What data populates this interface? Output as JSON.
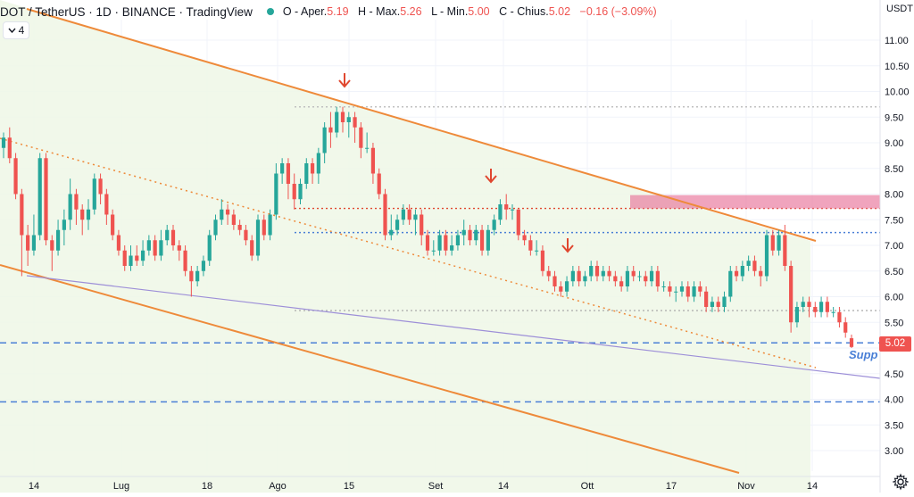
{
  "header": {
    "title": "DOT / TetherUS · 1D · BINANCE · TradingView",
    "status_color": "#26a69a",
    "ohlc": [
      {
        "label": "O - Aper.",
        "value": "5.19"
      },
      {
        "label": "H - Max.",
        "value": "5.26"
      },
      {
        "label": "L - Min.",
        "value": "5.00"
      },
      {
        "label": "C - Chius.",
        "value": "5.02"
      }
    ],
    "change": "−0.16 (−3.09%)"
  },
  "indicator_toggle": {
    "count": "4",
    "icon": "chevron-down-icon"
  },
  "price_axis": {
    "currency": "USDT"
  },
  "last_price": "5.02",
  "support_label": "Support",
  "colors": {
    "up": "#26a69a",
    "down": "#ef5350",
    "trendline": "#ee8a3a",
    "level_blue": "#4a7fd6",
    "level_red": "#e0472f",
    "zone_pink": "#e8739a",
    "channel_fill": "#eef7e6",
    "purple_line": "#9d8fd8"
  },
  "chart_data": {
    "type": "candlestick",
    "ylim": [
      2.6,
      11.4
    ],
    "y_ticks": [
      "3.00",
      "3.50",
      "4.00",
      "4.50",
      "5.00",
      "5.50",
      "6.00",
      "6.50",
      "7.00",
      "7.50",
      "8.00",
      "8.50",
      "9.00",
      "9.50",
      "10.00",
      "10.50",
      "11.00"
    ],
    "x_ticks": [
      "14",
      "Lug",
      "18",
      "Ago",
      "15",
      "Set",
      "14",
      "Ott",
      "17",
      "Nov",
      "14"
    ],
    "candles": [
      [
        8.9,
        9.1,
        8.7,
        9.2
      ],
      [
        9.1,
        8.7,
        8.6,
        9.3
      ],
      [
        8.7,
        8.0,
        7.9,
        8.8
      ],
      [
        8.0,
        7.2,
        6.4,
        8.1
      ],
      [
        7.2,
        6.9,
        6.6,
        7.4
      ],
      [
        6.9,
        7.2,
        6.8,
        7.6
      ],
      [
        7.2,
        8.7,
        7.1,
        8.8
      ],
      [
        8.7,
        7.1,
        7.0,
        8.8
      ],
      [
        7.1,
        6.9,
        6.5,
        7.2
      ],
      [
        6.9,
        7.3,
        6.8,
        7.5
      ],
      [
        7.3,
        7.5,
        7.0,
        7.7
      ],
      [
        7.5,
        8.0,
        7.3,
        8.3
      ],
      [
        8.0,
        7.7,
        7.4,
        8.1
      ],
      [
        7.7,
        7.5,
        7.2,
        7.8
      ],
      [
        7.5,
        7.7,
        7.3,
        7.9
      ],
      [
        7.7,
        8.3,
        7.6,
        8.4
      ],
      [
        8.3,
        8.0,
        7.8,
        8.4
      ],
      [
        8.0,
        7.6,
        7.4,
        8.1
      ],
      [
        7.6,
        7.2,
        7.1,
        7.7
      ],
      [
        7.2,
        6.9,
        6.8,
        7.3
      ],
      [
        6.9,
        6.6,
        6.5,
        7.0
      ],
      [
        6.6,
        6.8,
        6.5,
        7.0
      ],
      [
        6.8,
        6.7,
        6.6,
        7.0
      ],
      [
        6.7,
        6.9,
        6.6,
        7.1
      ],
      [
        6.9,
        7.1,
        6.8,
        7.2
      ],
      [
        7.1,
        6.8,
        6.7,
        7.2
      ],
      [
        6.8,
        7.1,
        6.7,
        7.3
      ],
      [
        7.1,
        7.3,
        7.0,
        7.4
      ],
      [
        7.3,
        7.0,
        6.9,
        7.4
      ],
      [
        7.0,
        6.9,
        6.7,
        7.1
      ],
      [
        6.9,
        6.5,
        6.4,
        7.0
      ],
      [
        6.5,
        6.3,
        6.0,
        6.6
      ],
      [
        6.3,
        6.5,
        6.2,
        6.6
      ],
      [
        6.5,
        6.7,
        6.4,
        6.8
      ],
      [
        6.7,
        7.2,
        6.6,
        7.3
      ],
      [
        7.2,
        7.5,
        7.1,
        7.6
      ],
      [
        7.5,
        7.7,
        7.4,
        7.9
      ],
      [
        7.7,
        7.6,
        7.4,
        7.8
      ],
      [
        7.6,
        7.4,
        7.3,
        7.7
      ],
      [
        7.4,
        7.3,
        7.2,
        7.5
      ],
      [
        7.3,
        7.1,
        7.0,
        7.4
      ],
      [
        7.1,
        6.8,
        6.7,
        7.2
      ],
      [
        6.8,
        7.5,
        6.7,
        7.6
      ],
      [
        7.5,
        7.2,
        7.1,
        7.6
      ],
      [
        7.2,
        7.6,
        7.1,
        7.7
      ],
      [
        7.6,
        8.4,
        7.5,
        8.6
      ],
      [
        8.4,
        8.6,
        8.2,
        8.7
      ],
      [
        8.6,
        8.2,
        7.9,
        8.7
      ],
      [
        8.2,
        7.9,
        7.7,
        8.4
      ],
      [
        7.9,
        8.2,
        7.8,
        8.3
      ],
      [
        8.2,
        8.6,
        8.1,
        8.7
      ],
      [
        8.6,
        8.4,
        8.2,
        8.7
      ],
      [
        8.4,
        8.8,
        8.2,
        8.9
      ],
      [
        8.8,
        9.3,
        8.6,
        9.4
      ],
      [
        9.3,
        9.2,
        8.9,
        9.6
      ],
      [
        9.2,
        9.6,
        9.1,
        9.7
      ],
      [
        9.6,
        9.4,
        9.2,
        9.7
      ],
      [
        9.4,
        9.5,
        9.1,
        9.6
      ],
      [
        9.5,
        9.3,
        9.0,
        9.6
      ],
      [
        9.3,
        8.9,
        8.7,
        9.4
      ],
      [
        8.9,
        8.9,
        8.8,
        9.2
      ],
      [
        8.9,
        8.4,
        8.2,
        9.0
      ],
      [
        8.4,
        8.0,
        7.9,
        8.5
      ],
      [
        8.0,
        7.2,
        7.1,
        8.1
      ],
      [
        7.2,
        7.3,
        7.1,
        7.6
      ],
      [
        7.3,
        7.5,
        7.2,
        7.6
      ],
      [
        7.5,
        7.7,
        7.4,
        7.8
      ],
      [
        7.7,
        7.5,
        7.4,
        7.8
      ],
      [
        7.5,
        7.6,
        7.2,
        7.7
      ],
      [
        7.6,
        7.2,
        7.0,
        7.7
      ],
      [
        7.2,
        6.9,
        6.8,
        7.3
      ],
      [
        6.9,
        6.9,
        6.8,
        7.1
      ],
      [
        6.9,
        7.2,
        6.8,
        7.3
      ],
      [
        7.2,
        6.9,
        6.8,
        7.3
      ],
      [
        6.9,
        7.0,
        6.8,
        7.2
      ],
      [
        7.0,
        7.2,
        6.9,
        7.3
      ],
      [
        7.2,
        7.3,
        7.0,
        7.5
      ],
      [
        7.3,
        7.1,
        7.0,
        7.4
      ],
      [
        7.1,
        7.3,
        7.0,
        7.4
      ],
      [
        7.3,
        6.9,
        6.8,
        7.4
      ],
      [
        6.9,
        7.3,
        6.8,
        7.4
      ],
      [
        7.3,
        7.5,
        7.2,
        7.6
      ],
      [
        7.5,
        7.8,
        7.4,
        7.9
      ],
      [
        7.8,
        7.7,
        7.5,
        8.0
      ],
      [
        7.7,
        7.7,
        7.5,
        7.8
      ],
      [
        7.7,
        7.2,
        7.1,
        7.7
      ],
      [
        7.2,
        7.1,
        7.0,
        7.3
      ],
      [
        7.1,
        6.9,
        6.8,
        7.2
      ],
      [
        6.9,
        6.9,
        6.8,
        7.1
      ],
      [
        6.9,
        6.5,
        6.4,
        7.0
      ],
      [
        6.5,
        6.4,
        6.3,
        6.6
      ],
      [
        6.4,
        6.2,
        6.1,
        6.5
      ],
      [
        6.2,
        6.1,
        6.0,
        6.3
      ],
      [
        6.1,
        6.3,
        6.0,
        6.4
      ],
      [
        6.3,
        6.5,
        6.2,
        6.6
      ],
      [
        6.5,
        6.3,
        6.2,
        6.6
      ],
      [
        6.3,
        6.4,
        6.2,
        6.5
      ],
      [
        6.4,
        6.6,
        6.3,
        6.7
      ],
      [
        6.6,
        6.4,
        6.3,
        6.7
      ],
      [
        6.4,
        6.5,
        6.3,
        6.6
      ],
      [
        6.5,
        6.4,
        6.3,
        6.6
      ],
      [
        6.4,
        6.3,
        6.2,
        6.5
      ],
      [
        6.3,
        6.2,
        6.1,
        6.4
      ],
      [
        6.2,
        6.5,
        6.1,
        6.6
      ],
      [
        6.5,
        6.4,
        6.3,
        6.6
      ],
      [
        6.4,
        6.4,
        6.3,
        6.5
      ],
      [
        6.4,
        6.3,
        6.2,
        6.5
      ],
      [
        6.3,
        6.5,
        6.2,
        6.6
      ],
      [
        6.5,
        6.2,
        6.1,
        6.6
      ],
      [
        6.2,
        6.2,
        6.1,
        6.3
      ],
      [
        6.2,
        6.1,
        6.0,
        6.3
      ],
      [
        6.1,
        6.1,
        5.9,
        6.2
      ],
      [
        6.1,
        6.2,
        6.0,
        6.3
      ],
      [
        6.2,
        6.0,
        5.9,
        6.3
      ],
      [
        6.0,
        6.2,
        5.9,
        6.3
      ],
      [
        6.2,
        6.1,
        6.0,
        6.3
      ],
      [
        6.1,
        5.8,
        5.7,
        6.2
      ],
      [
        5.8,
        5.9,
        5.7,
        6.0
      ],
      [
        5.9,
        5.8,
        5.7,
        6.0
      ],
      [
        5.8,
        6.0,
        5.7,
        6.1
      ],
      [
        6.0,
        6.5,
        5.9,
        6.6
      ],
      [
        6.5,
        6.4,
        6.3,
        6.6
      ],
      [
        6.4,
        6.6,
        6.3,
        6.7
      ],
      [
        6.6,
        6.7,
        6.5,
        6.8
      ],
      [
        6.7,
        6.5,
        6.4,
        6.8
      ],
      [
        6.5,
        6.4,
        6.2,
        6.6
      ],
      [
        6.4,
        7.2,
        6.3,
        7.3
      ],
      [
        7.2,
        6.9,
        6.8,
        7.3
      ],
      [
        6.9,
        7.2,
        6.8,
        7.3
      ],
      [
        7.2,
        6.6,
        6.5,
        7.4
      ],
      [
        6.6,
        5.5,
        5.3,
        6.7
      ],
      [
        5.5,
        5.8,
        5.4,
        5.9
      ],
      [
        5.8,
        5.9,
        5.7,
        6.0
      ],
      [
        5.9,
        5.8,
        5.6,
        6.0
      ],
      [
        5.8,
        5.7,
        5.6,
        5.9
      ],
      [
        5.7,
        5.9,
        5.6,
        6.0
      ],
      [
        5.9,
        5.7,
        5.6,
        6.0
      ],
      [
        5.7,
        5.7,
        5.6,
        5.8
      ],
      [
        5.7,
        5.5,
        5.4,
        5.8
      ],
      [
        5.5,
        5.3,
        5.2,
        5.6
      ],
      [
        5.19,
        5.02,
        5.0,
        5.26
      ]
    ],
    "horizontal_levels": [
      {
        "price": 5.1,
        "style": "dashed",
        "color": "#4a7fd6"
      },
      {
        "price": 3.95,
        "style": "dashed",
        "color": "#4a7fd6"
      },
      {
        "price": 7.25,
        "style": "dotted",
        "color": "#4a7fd6"
      },
      {
        "price": 7.72,
        "style": "dotted",
        "color": "#e0472f"
      },
      {
        "price": 9.7,
        "style": "dotted",
        "color": "#c0c0c0"
      },
      {
        "price": 5.73,
        "style": "dotted",
        "color": "#b0b0b0"
      }
    ],
    "zone": {
      "from": 7.72,
      "to": 7.98
    },
    "markers": [
      "down-arrow",
      "down-arrow",
      "down-arrow"
    ]
  }
}
